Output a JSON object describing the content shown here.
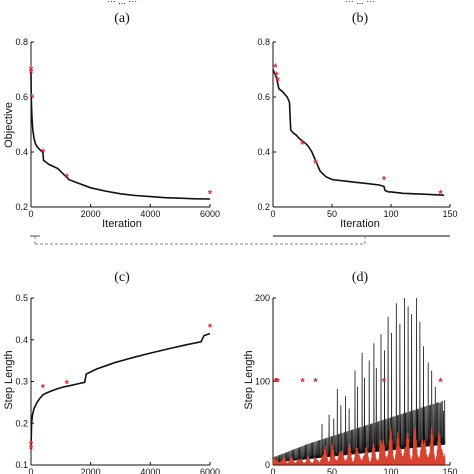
{
  "header_fragments": [
    "··· ... ···",
    "··· ... ···"
  ],
  "colors": {
    "line": "#111111",
    "marker": "#e8262d",
    "red_series": "#d9432f",
    "bracket": "#888888"
  },
  "chart_data": [
    {
      "panel": "(a)",
      "type": "line",
      "xlabel": "Iteration",
      "ylabel": "Objective",
      "xlim": [
        0,
        6000
      ],
      "ylim": [
        0.2,
        0.8
      ],
      "xticks": [
        0,
        2000,
        4000,
        6000
      ],
      "yticks": [
        0.2,
        0.4,
        0.6,
        0.8
      ],
      "series": [
        {
          "x": [
            0,
            5,
            15,
            30,
            60,
            100,
            150,
            200,
            280,
            380,
            399,
            420,
            600,
            900,
            1180,
            1200,
            1260,
            1500,
            2000,
            2500,
            3000,
            3500,
            4000,
            4500,
            5000,
            5500,
            6000
          ],
          "y": [
            0.7,
            0.64,
            0.58,
            0.53,
            0.48,
            0.45,
            0.43,
            0.42,
            0.41,
            0.4,
            0.4,
            0.37,
            0.355,
            0.34,
            0.31,
            0.31,
            0.3,
            0.29,
            0.27,
            0.258,
            0.248,
            0.242,
            0.238,
            0.234,
            0.232,
            0.23,
            0.229
          ]
        }
      ],
      "markers": {
        "x": [
          0,
          0,
          20,
          400,
          1200,
          6000
        ],
        "y": [
          0.7,
          0.69,
          0.6,
          0.4,
          0.31,
          0.25
        ]
      }
    },
    {
      "panel": "(b)",
      "type": "line",
      "xlabel": "Iteration",
      "ylabel": "",
      "xlim": [
        0,
        150
      ],
      "ylim": [
        0.2,
        0.8
      ],
      "xticks": [
        0,
        50,
        100,
        150
      ],
      "yticks": [
        0.2,
        0.4,
        0.6,
        0.8
      ],
      "series": [
        {
          "x": [
            0,
            1,
            2,
            3,
            4,
            5,
            8,
            10,
            12,
            14,
            15,
            17,
            20,
            22,
            25,
            28,
            30,
            33,
            35,
            37,
            38,
            40,
            45,
            50,
            60,
            70,
            80,
            90,
            94,
            95,
            98,
            100,
            110,
            120,
            130,
            140,
            145
          ],
          "y": [
            0.7,
            0.69,
            0.68,
            0.67,
            0.65,
            0.63,
            0.62,
            0.61,
            0.6,
            0.58,
            0.48,
            0.47,
            0.46,
            0.45,
            0.44,
            0.43,
            0.42,
            0.4,
            0.38,
            0.36,
            0.35,
            0.33,
            0.31,
            0.3,
            0.295,
            0.29,
            0.285,
            0.28,
            0.275,
            0.26,
            0.255,
            0.255,
            0.25,
            0.248,
            0.246,
            0.244,
            0.243
          ]
        }
      ],
      "markers": {
        "x": [
          2,
          3,
          4,
          25,
          36,
          94,
          142
        ],
        "y": [
          0.71,
          0.68,
          0.66,
          0.43,
          0.36,
          0.3,
          0.25
        ]
      }
    },
    {
      "panel": "(c)",
      "type": "line",
      "xlabel": "",
      "ylabel": "Step Length",
      "xlim": [
        0,
        6000
      ],
      "ylim": [
        0.1,
        0.5
      ],
      "xticks": [
        0,
        2000,
        4000,
        6000
      ],
      "yticks": [
        0.1,
        0.2,
        0.3,
        0.4,
        0.5
      ],
      "series": [
        {
          "x": [
            0,
            20,
            50,
            100,
            200,
            300,
            400,
            500,
            700,
            900,
            1100,
            1300,
            1600,
            1800,
            1850,
            2200,
            2800,
            3400,
            4000,
            4600,
            5200,
            5700,
            5800,
            6000
          ],
          "y": [
            0.14,
            0.2,
            0.22,
            0.235,
            0.25,
            0.26,
            0.268,
            0.272,
            0.278,
            0.283,
            0.287,
            0.29,
            0.295,
            0.298,
            0.318,
            0.33,
            0.345,
            0.357,
            0.368,
            0.378,
            0.388,
            0.395,
            0.41,
            0.415
          ]
        }
      ],
      "markers": {
        "x": [
          0,
          0,
          400,
          1200,
          6000
        ],
        "y": [
          0.15,
          0.14,
          0.286,
          0.295,
          0.43
        ]
      }
    },
    {
      "panel": "(d)",
      "type": "line",
      "xlabel": "",
      "ylabel": "Step Length",
      "xlim": [
        0,
        150
      ],
      "ylim": [
        0,
        200
      ],
      "xticks": [
        0,
        50,
        100,
        150
      ],
      "yticks": [
        0,
        100,
        200
      ],
      "series": [
        {
          "color_key": "line",
          "x": [],
          "y": []
        },
        {
          "color_key": "red_series",
          "x": [],
          "y": []
        }
      ],
      "markers": {
        "x": [
          2,
          3,
          4,
          25,
          36,
          94,
          142
        ],
        "y": [
          100,
          100,
          100,
          100,
          100,
          100,
          100
        ]
      }
    }
  ]
}
